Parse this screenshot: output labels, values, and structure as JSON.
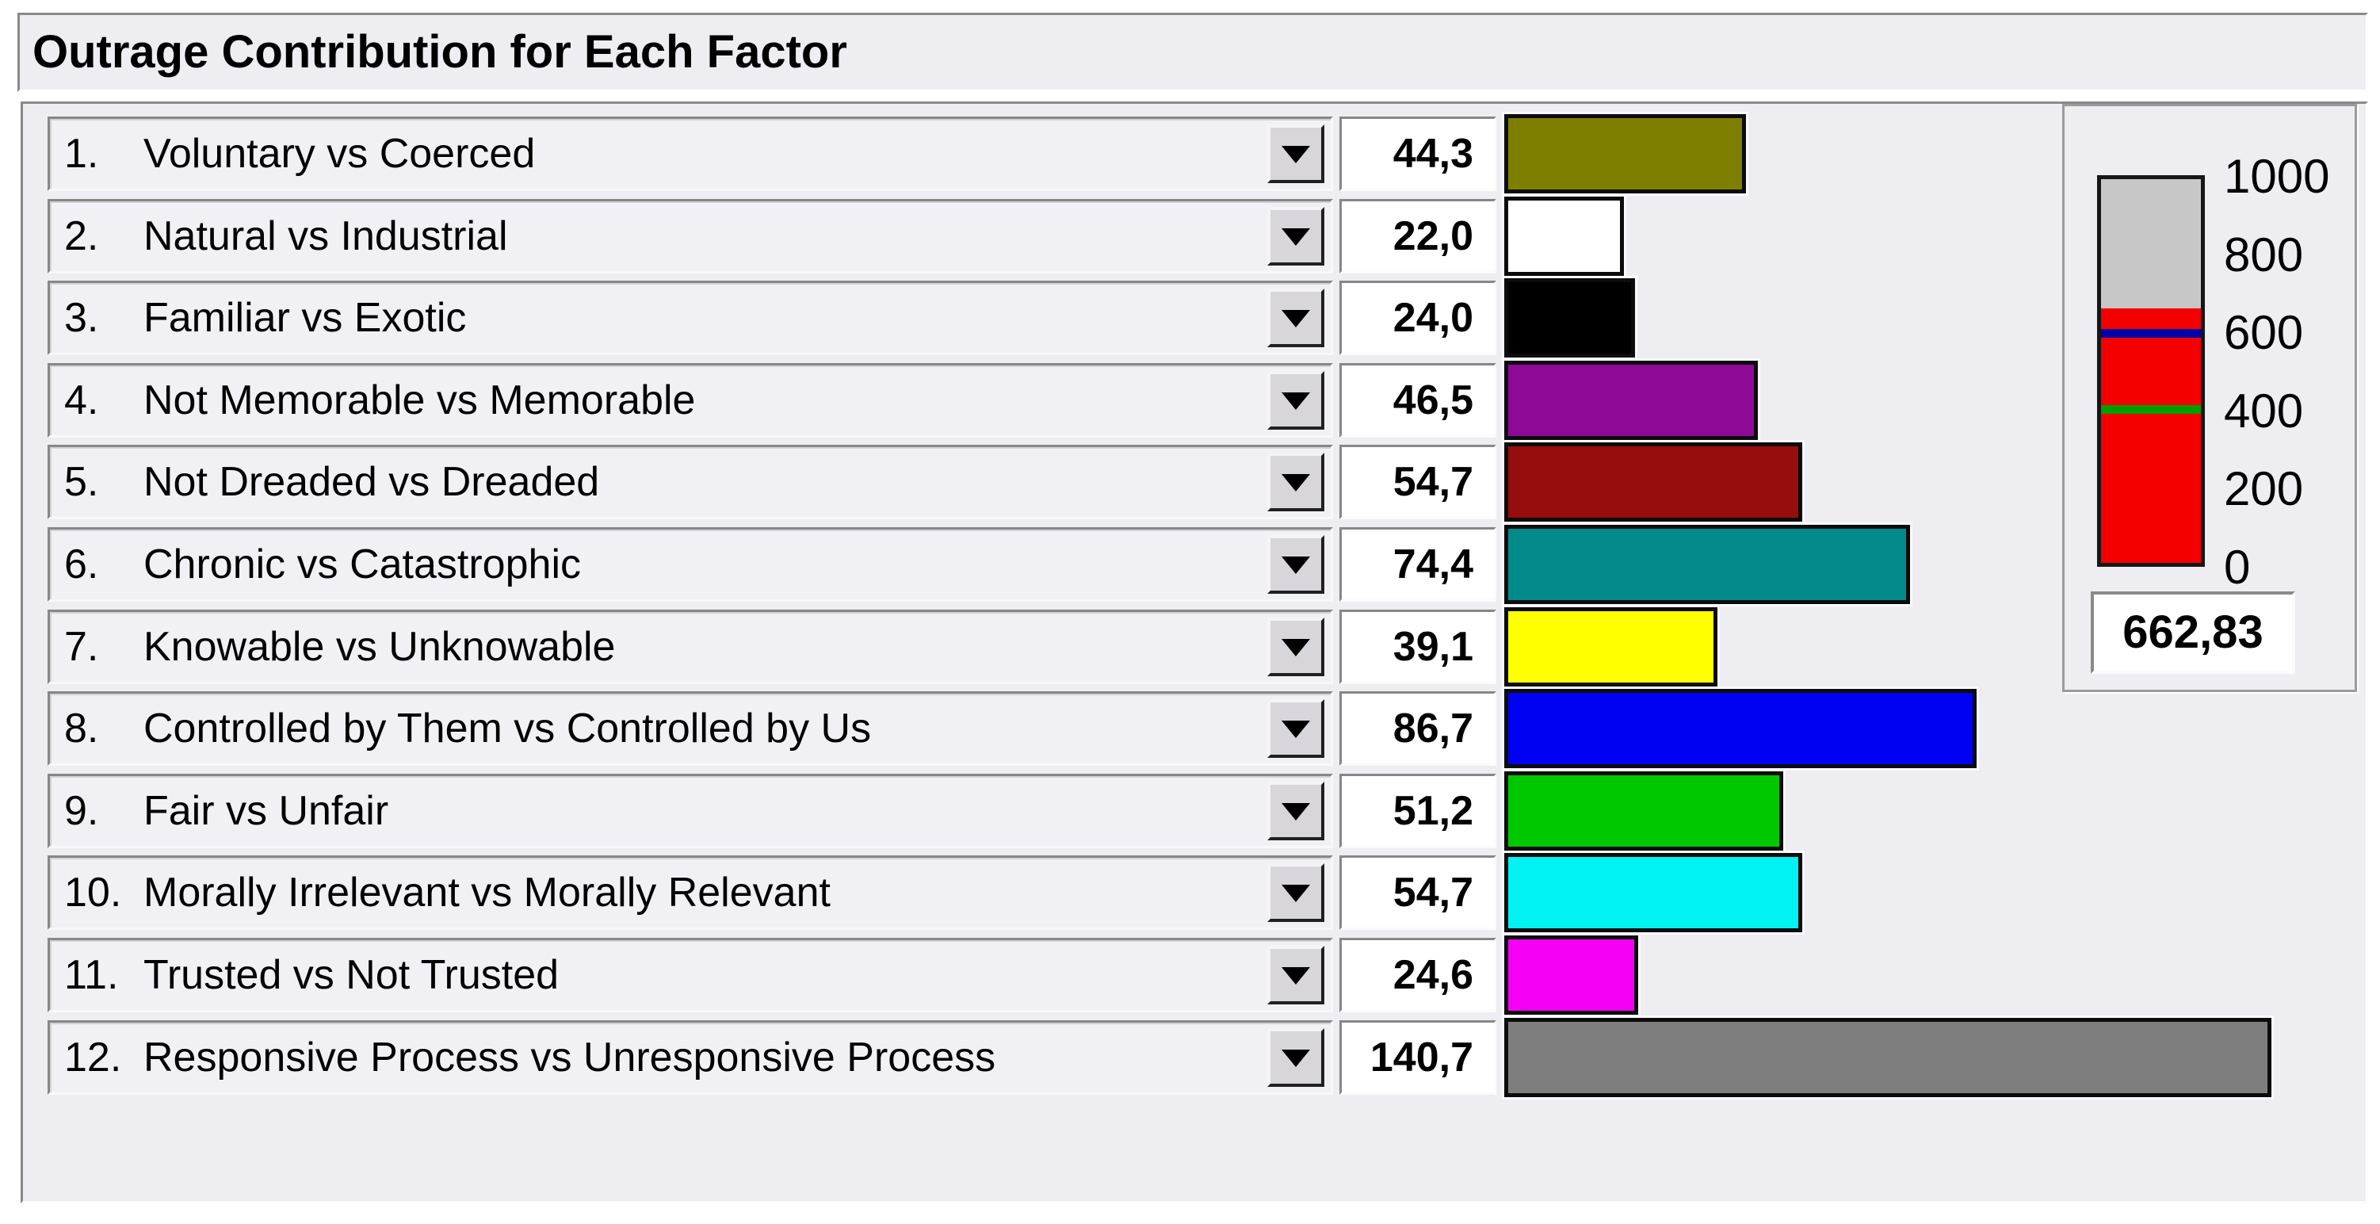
{
  "title": "Outrage Contribution for Each Factor",
  "factors": [
    {
      "num": "1.",
      "label": "Voluntary vs Coerced",
      "value": "44,3",
      "value_num": 44.3,
      "color": "#7E7E00"
    },
    {
      "num": "2.",
      "label": "Natural vs Industrial",
      "value": "22,0",
      "value_num": 22.0,
      "color": "#FFFFFF"
    },
    {
      "num": "3.",
      "label": "Familiar vs Exotic",
      "value": "24,0",
      "value_num": 24.0,
      "color": "#000000"
    },
    {
      "num": "4.",
      "label": "Not Memorable vs Memorable",
      "value": "46,5",
      "value_num": 46.5,
      "color": "#8E0A96"
    },
    {
      "num": "5.",
      "label": "Not Dreaded vs Dreaded",
      "value": "54,7",
      "value_num": 54.7,
      "color": "#970D0D"
    },
    {
      "num": "6.",
      "label": "Chronic vs Catastrophic",
      "value": "74,4",
      "value_num": 74.4,
      "color": "#038B8B"
    },
    {
      "num": "7.",
      "label": "Knowable vs Unknowable",
      "value": "39,1",
      "value_num": 39.1,
      "color": "#FFFF00"
    },
    {
      "num": "8.",
      "label": "Controlled by Them vs Controlled by Us",
      "value": "86,7",
      "value_num": 86.7,
      "color": "#0000F2"
    },
    {
      "num": "9.",
      "label": "Fair vs Unfair",
      "value": "51,2",
      "value_num": 51.2,
      "color": "#00C800"
    },
    {
      "num": "10.",
      "label": "Morally Irrelevant vs Morally Relevant",
      "value": "54,7",
      "value_num": 54.7,
      "color": "#00F2F2"
    },
    {
      "num": "11.",
      "label": "Trusted vs Not Trusted",
      "value": "24,6",
      "value_num": 24.6,
      "color": "#F500F5"
    },
    {
      "num": "12.",
      "label": "Responsive Process vs Unresponsive Process",
      "value": "140,7",
      "value_num": 140.7,
      "color": "#7E7E7E"
    }
  ],
  "chart_data": {
    "type": "bar",
    "title": "Outrage Contribution for Each Factor",
    "categories": [
      "Voluntary vs Coerced",
      "Natural vs Industrial",
      "Familiar vs Exotic",
      "Not Memorable vs Memorable",
      "Not Dreaded vs Dreaded",
      "Chronic vs Catastrophic",
      "Knowable vs Unknowable",
      "Controlled by Them vs Controlled by Us",
      "Fair vs Unfair",
      "Morally Irrelevant vs Morally Relevant",
      "Trusted vs Not Trusted",
      "Responsive Process vs Unresponsive Process"
    ],
    "values": [
      44.3,
      22.0,
      24.0,
      46.5,
      54.7,
      74.4,
      39.1,
      86.7,
      51.2,
      54.7,
      24.6,
      140.7
    ],
    "bar_colors": [
      "#7E7E00",
      "#FFFFFF",
      "#000000",
      "#8E0A96",
      "#970D0D",
      "#038B8B",
      "#FFFF00",
      "#0000F2",
      "#00C800",
      "#00F2F2",
      "#F500F5",
      "#7E7E7E"
    ],
    "orientation": "horizontal"
  },
  "gauge": {
    "min": 0,
    "max": 1000,
    "value": 662.83,
    "value_label": "662,83",
    "ticks": [
      "1000",
      "800",
      "600",
      "400",
      "200",
      "0"
    ],
    "fill_color": "#F40000",
    "empty_color": "#C7C7C7",
    "markers": [
      {
        "name": "blue-marker",
        "value": 600,
        "color": "#0000A6"
      },
      {
        "name": "green-marker",
        "value": 400,
        "color": "#009E00"
      }
    ]
  }
}
